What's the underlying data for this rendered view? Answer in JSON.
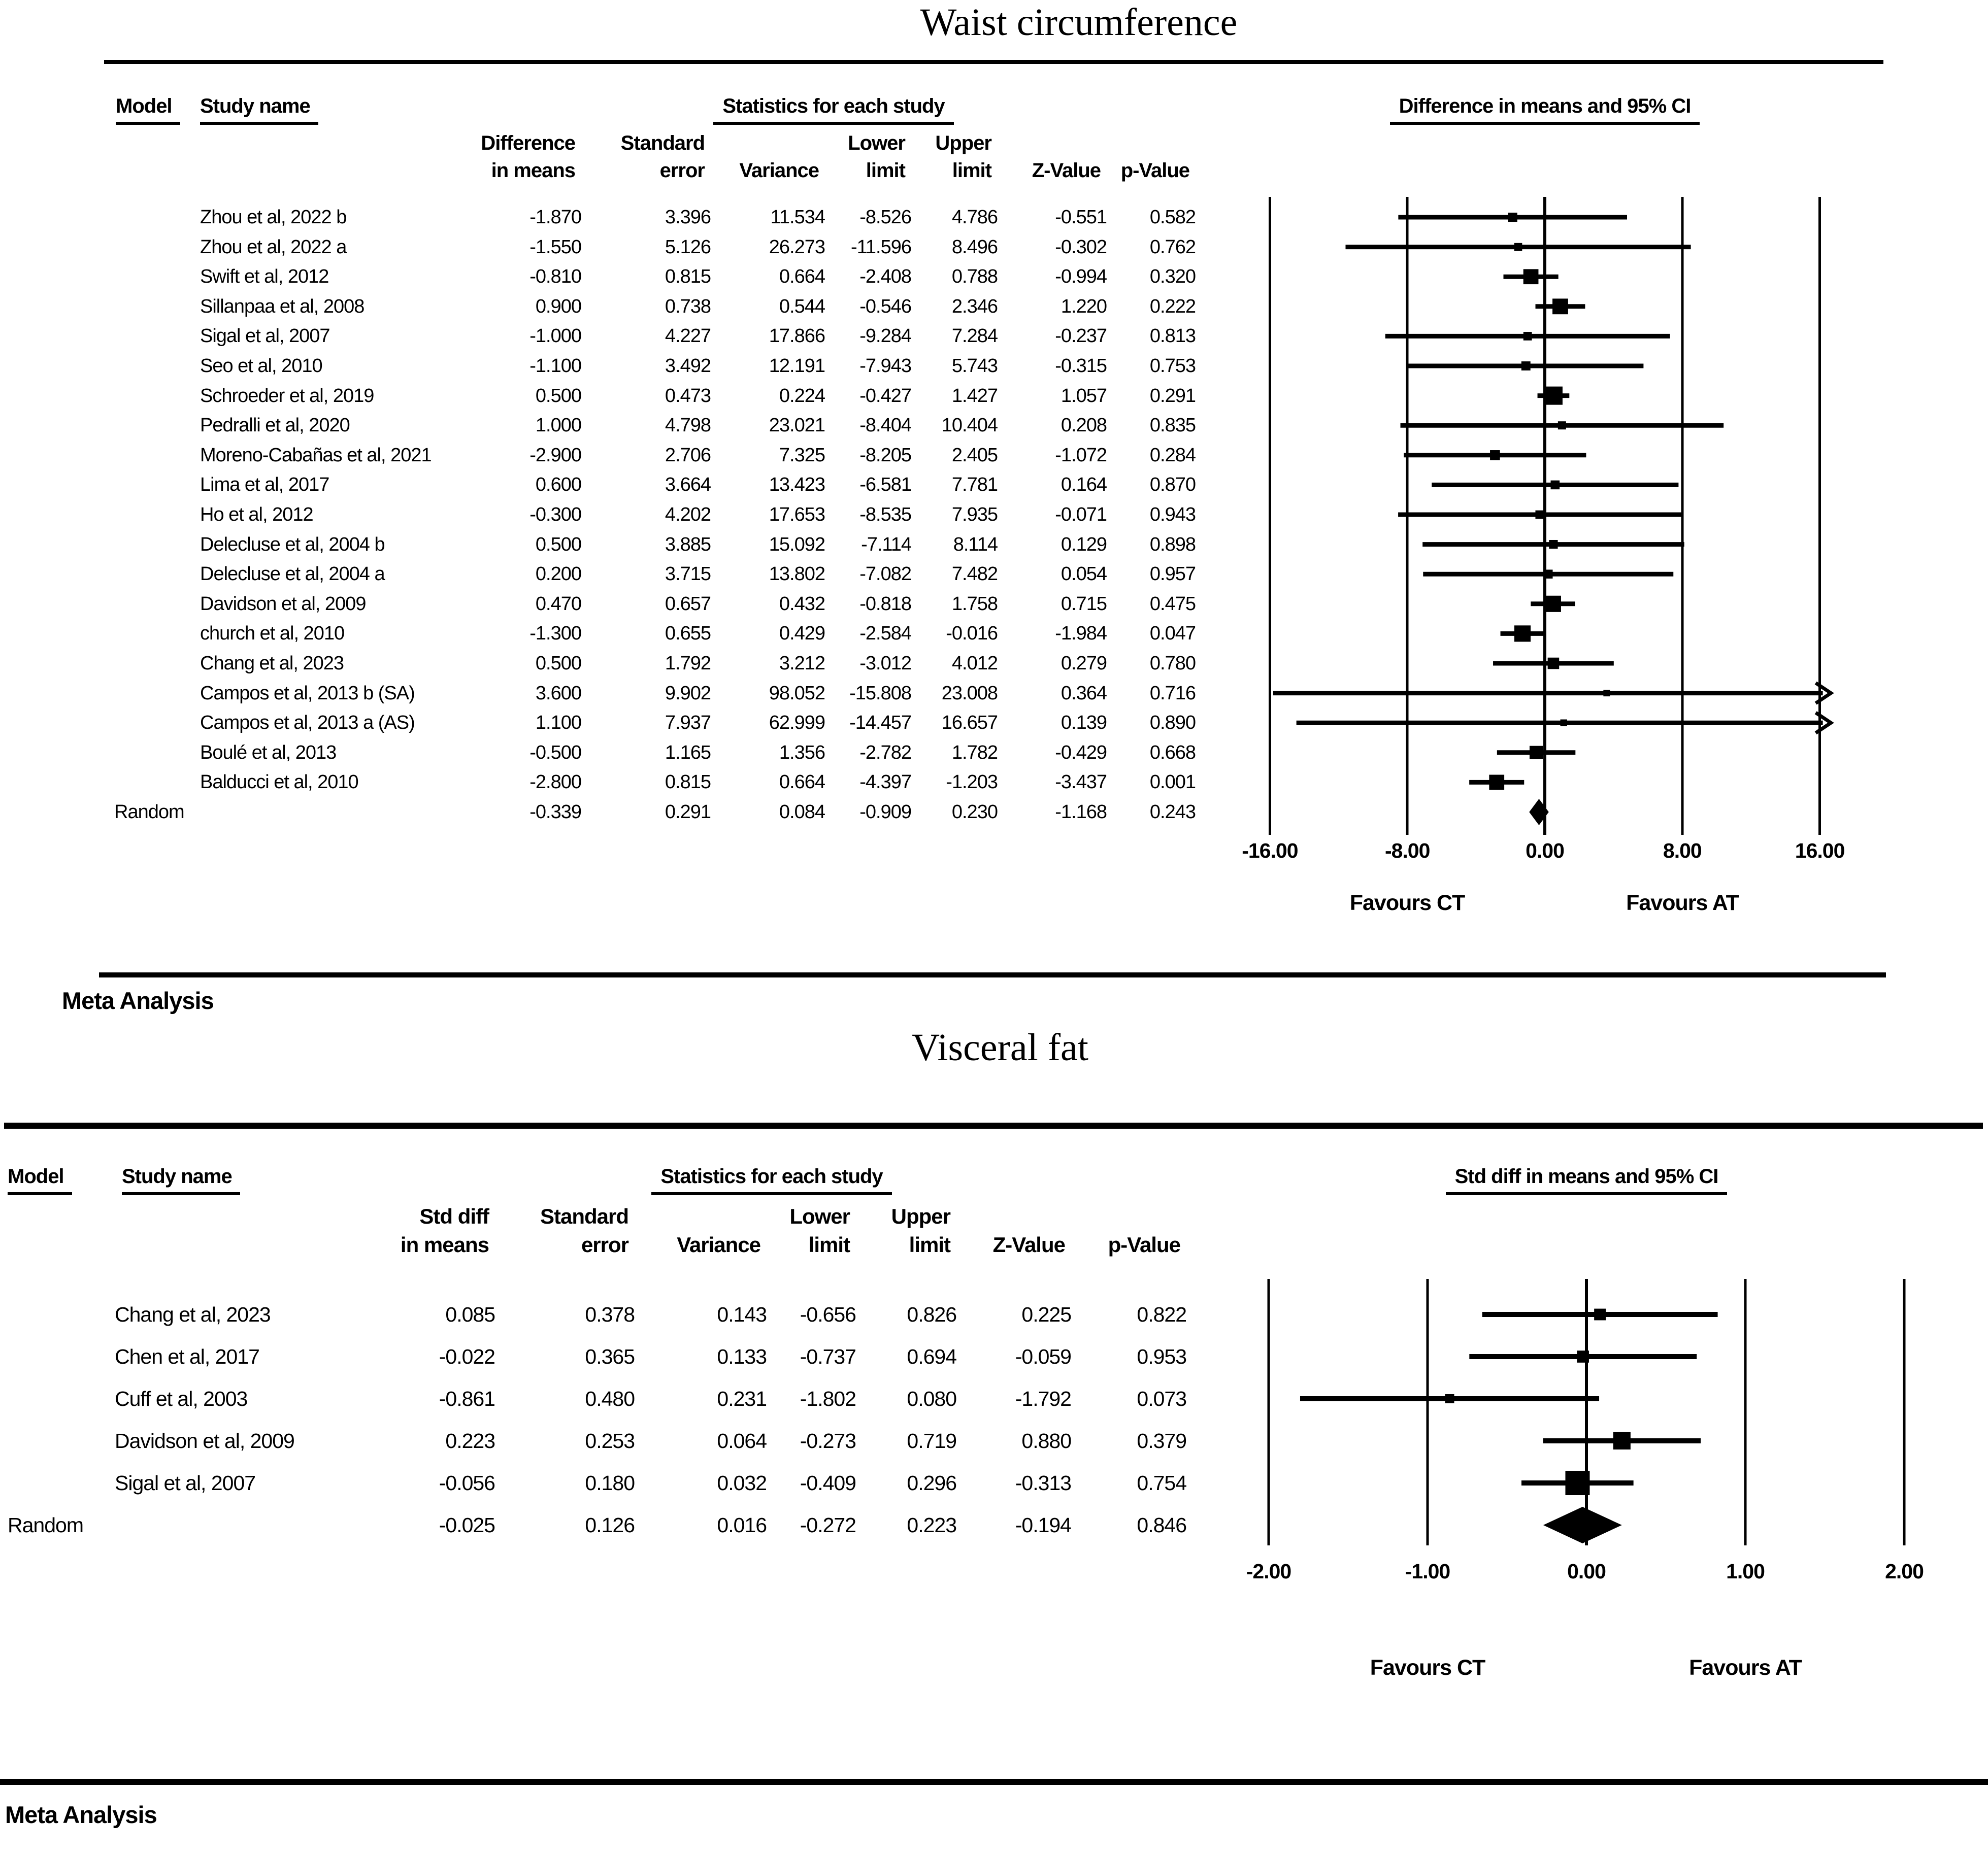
{
  "figure": {
    "colors": {
      "ink": "#000000",
      "paper": "#ffffff"
    }
  },
  "chart_data": [
    {
      "type": "forest",
      "title": "Waist circumference",
      "model_header": "Model",
      "study_header": "Study name",
      "stats_header": "Statistics for each study",
      "effect_header": "Difference in means and 95% CI",
      "effect_measure": "Difference in means",
      "columns_line1": [
        "Difference",
        "Standard",
        "",
        "Lower",
        "Upper",
        "",
        ""
      ],
      "columns_line2": [
        "in means",
        "error",
        "Variance",
        "limit",
        "limit",
        "Z-Value",
        "p-Value"
      ],
      "studies": [
        {
          "name": "Zhou et al, 2022 b",
          "effect": "-1.870",
          "se": "3.396",
          "variance": "11.534",
          "lower": "-8.526",
          "upper": "4.786",
          "z": "-0.551",
          "p": "0.582"
        },
        {
          "name": "Zhou et al, 2022 a",
          "effect": "-1.550",
          "se": "5.126",
          "variance": "26.273",
          "lower": "-11.596",
          "upper": "8.496",
          "z": "-0.302",
          "p": "0.762"
        },
        {
          "name": "Swift et al, 2012",
          "effect": "-0.810",
          "se": "0.815",
          "variance": "0.664",
          "lower": "-2.408",
          "upper": "0.788",
          "z": "-0.994",
          "p": "0.320"
        },
        {
          "name": "Sillanpaa et al, 2008",
          "effect": "0.900",
          "se": "0.738",
          "variance": "0.544",
          "lower": "-0.546",
          "upper": "2.346",
          "z": "1.220",
          "p": "0.222"
        },
        {
          "name": "Sigal et al, 2007",
          "effect": "-1.000",
          "se": "4.227",
          "variance": "17.866",
          "lower": "-9.284",
          "upper": "7.284",
          "z": "-0.237",
          "p": "0.813"
        },
        {
          "name": "Seo et al, 2010",
          "effect": "-1.100",
          "se": "3.492",
          "variance": "12.191",
          "lower": "-7.943",
          "upper": "5.743",
          "z": "-0.315",
          "p": "0.753"
        },
        {
          "name": "Schroeder et al, 2019",
          "effect": "0.500",
          "se": "0.473",
          "variance": "0.224",
          "lower": "-0.427",
          "upper": "1.427",
          "z": "1.057",
          "p": "0.291"
        },
        {
          "name": "Pedralli et al, 2020",
          "effect": "1.000",
          "se": "4.798",
          "variance": "23.021",
          "lower": "-8.404",
          "upper": "10.404",
          "z": "0.208",
          "p": "0.835"
        },
        {
          "name": "Moreno-Cabañas et al, 2021",
          "effect": "-2.900",
          "se": "2.706",
          "variance": "7.325",
          "lower": "-8.205",
          "upper": "2.405",
          "z": "-1.072",
          "p": "0.284"
        },
        {
          "name": "Lima et al, 2017",
          "effect": "0.600",
          "se": "3.664",
          "variance": "13.423",
          "lower": "-6.581",
          "upper": "7.781",
          "z": "0.164",
          "p": "0.870"
        },
        {
          "name": "Ho et al, 2012",
          "effect": "-0.300",
          "se": "4.202",
          "variance": "17.653",
          "lower": "-8.535",
          "upper": "7.935",
          "z": "-0.071",
          "p": "0.943"
        },
        {
          "name": "Delecluse et al, 2004 b",
          "effect": "0.500",
          "se": "3.885",
          "variance": "15.092",
          "lower": "-7.114",
          "upper": "8.114",
          "z": "0.129",
          "p": "0.898"
        },
        {
          "name": "Delecluse et al, 2004 a",
          "effect": "0.200",
          "se": "3.715",
          "variance": "13.802",
          "lower": "-7.082",
          "upper": "7.482",
          "z": "0.054",
          "p": "0.957"
        },
        {
          "name": "Davidson et al, 2009",
          "effect": "0.470",
          "se": "0.657",
          "variance": "0.432",
          "lower": "-0.818",
          "upper": "1.758",
          "z": "0.715",
          "p": "0.475"
        },
        {
          "name": "church et al, 2010",
          "effect": "-1.300",
          "se": "0.655",
          "variance": "0.429",
          "lower": "-2.584",
          "upper": "-0.016",
          "z": "-1.984",
          "p": "0.047"
        },
        {
          "name": "Chang et al, 2023",
          "effect": "0.500",
          "se": "1.792",
          "variance": "3.212",
          "lower": "-3.012",
          "upper": "4.012",
          "z": "0.279",
          "p": "0.780"
        },
        {
          "name": "Campos et al, 2013 b (SA)",
          "effect": "3.600",
          "se": "9.902",
          "variance": "98.052",
          "lower": "-15.808",
          "upper": "23.008",
          "z": "0.364",
          "p": "0.716"
        },
        {
          "name": "Campos et al, 2013 a (AS)",
          "effect": "1.100",
          "se": "7.937",
          "variance": "62.999",
          "lower": "-14.457",
          "upper": "16.657",
          "z": "0.139",
          "p": "0.890"
        },
        {
          "name": "Boulé et al, 2013",
          "effect": "-0.500",
          "se": "1.165",
          "variance": "1.356",
          "lower": "-2.782",
          "upper": "1.782",
          "z": "-0.429",
          "p": "0.668"
        },
        {
          "name": "Balducci et al, 2010",
          "effect": "-2.800",
          "se": "0.815",
          "variance": "0.664",
          "lower": "-4.397",
          "upper": "-1.203",
          "z": "-3.437",
          "p": "0.001"
        }
      ],
      "summary": {
        "model": "Random",
        "effect": "-0.339",
        "se": "0.291",
        "variance": "0.084",
        "lower": "-0.909",
        "upper": "0.230",
        "z": "-1.168",
        "p": "0.243"
      },
      "x_axis": {
        "min": -16,
        "max": 16,
        "ticks": [
          "-16.00",
          "-8.00",
          "0.00",
          "8.00",
          "16.00"
        ],
        "grid": true
      },
      "favours_left": "Favours CT",
      "favours_right": "Favours AT",
      "footer": "Meta Analysis"
    },
    {
      "type": "forest",
      "title": "Visceral fat",
      "model_header": "Model",
      "study_header": "Study name",
      "stats_header": "Statistics for each study",
      "effect_header": "Std diff in means and 95%  CI",
      "effect_measure": "Std diff in means",
      "columns_line1": [
        "Std diff",
        "Standard",
        "",
        "Lower",
        "Upper",
        "",
        ""
      ],
      "columns_line2": [
        "in means",
        "error",
        "Variance",
        "limit",
        "limit",
        "Z-Value",
        "p-Value"
      ],
      "studies": [
        {
          "name": "Chang et al, 2023",
          "effect": "0.085",
          "se": "0.378",
          "variance": "0.143",
          "lower": "-0.656",
          "upper": "0.826",
          "z": "0.225",
          "p": "0.822"
        },
        {
          "name": "Chen et al, 2017",
          "effect": "-0.022",
          "se": "0.365",
          "variance": "0.133",
          "lower": "-0.737",
          "upper": "0.694",
          "z": "-0.059",
          "p": "0.953"
        },
        {
          "name": "Cuff et al, 2003",
          "effect": "-0.861",
          "se": "0.480",
          "variance": "0.231",
          "lower": "-1.802",
          "upper": "0.080",
          "z": "-1.792",
          "p": "0.073"
        },
        {
          "name": "Davidson et al, 2009",
          "effect": "0.223",
          "se": "0.253",
          "variance": "0.064",
          "lower": "-0.273",
          "upper": "0.719",
          "z": "0.880",
          "p": "0.379"
        },
        {
          "name": "Sigal et al, 2007",
          "effect": "-0.056",
          "se": "0.180",
          "variance": "0.032",
          "lower": "-0.409",
          "upper": "0.296",
          "z": "-0.313",
          "p": "0.754"
        }
      ],
      "summary": {
        "model": "Random",
        "effect": "-0.025",
        "se": "0.126",
        "variance": "0.016",
        "lower": "-0.272",
        "upper": "0.223",
        "z": "-0.194",
        "p": "0.846"
      },
      "x_axis": {
        "min": -2,
        "max": 2,
        "ticks": [
          "-2.00",
          "-1.00",
          "0.00",
          "1.00",
          "2.00"
        ],
        "grid": true
      },
      "favours_left": "Favours CT",
      "favours_right": "Favours AT",
      "footer": "Meta Analysis"
    }
  ]
}
